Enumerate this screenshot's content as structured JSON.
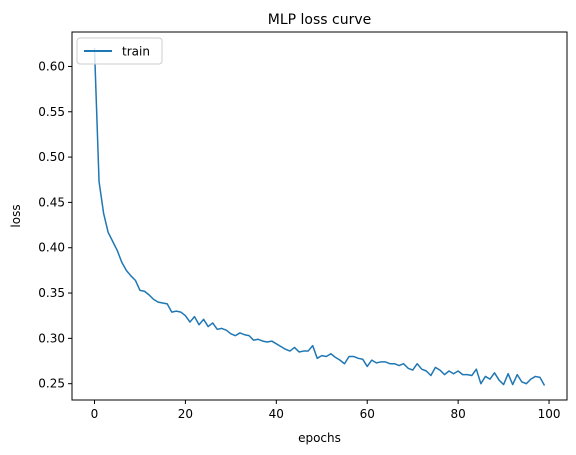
{
  "chart_data": {
    "type": "line",
    "title": "MLP loss curve",
    "xlabel": "epochs",
    "ylabel": "loss",
    "xlim": [
      -4.95,
      103.95
    ],
    "ylim": [
      0.232,
      0.638
    ],
    "x_ticks": [
      0,
      20,
      40,
      60,
      80,
      100
    ],
    "x_tick_labels": [
      "0",
      "20",
      "40",
      "60",
      "80",
      "100"
    ],
    "y_ticks": [
      0.25,
      0.3,
      0.35,
      0.4,
      0.45,
      0.5,
      0.55,
      0.6
    ],
    "y_tick_labels": [
      "0.25",
      "0.30",
      "0.35",
      "0.40",
      "0.45",
      "0.50",
      "0.55",
      "0.60"
    ],
    "grid": false,
    "legend": {
      "position": "upper-left",
      "entries": [
        "train"
      ]
    },
    "series": [
      {
        "name": "train",
        "color": "#1f77b4",
        "x": [
          0,
          1,
          2,
          3,
          4,
          5,
          6,
          7,
          8,
          9,
          10,
          11,
          12,
          13,
          14,
          15,
          16,
          17,
          18,
          19,
          20,
          21,
          22,
          23,
          24,
          25,
          26,
          27,
          28,
          29,
          30,
          31,
          32,
          33,
          34,
          35,
          36,
          37,
          38,
          39,
          40,
          41,
          42,
          43,
          44,
          45,
          46,
          47,
          48,
          49,
          50,
          51,
          52,
          53,
          54,
          55,
          56,
          57,
          58,
          59,
          60,
          61,
          62,
          63,
          64,
          65,
          66,
          67,
          68,
          69,
          70,
          71,
          72,
          73,
          74,
          75,
          76,
          77,
          78,
          79,
          80,
          81,
          82,
          83,
          84,
          85,
          86,
          87,
          88,
          89,
          90,
          91,
          92,
          93,
          94,
          95,
          96,
          97,
          98,
          99
        ],
        "values": [
          0.62,
          0.473,
          0.438,
          0.417,
          0.407,
          0.397,
          0.384,
          0.375,
          0.369,
          0.364,
          0.353,
          0.352,
          0.348,
          0.343,
          0.34,
          0.339,
          0.338,
          0.329,
          0.33,
          0.329,
          0.325,
          0.318,
          0.324,
          0.315,
          0.321,
          0.313,
          0.317,
          0.31,
          0.311,
          0.309,
          0.305,
          0.303,
          0.306,
          0.304,
          0.303,
          0.298,
          0.299,
          0.297,
          0.296,
          0.297,
          0.294,
          0.291,
          0.288,
          0.286,
          0.29,
          0.285,
          0.286,
          0.286,
          0.292,
          0.278,
          0.281,
          0.28,
          0.283,
          0.279,
          0.276,
          0.272,
          0.28,
          0.28,
          0.278,
          0.277,
          0.269,
          0.276,
          0.273,
          0.274,
          0.274,
          0.272,
          0.272,
          0.27,
          0.272,
          0.267,
          0.265,
          0.272,
          0.266,
          0.264,
          0.259,
          0.268,
          0.265,
          0.26,
          0.264,
          0.261,
          0.264,
          0.26,
          0.26,
          0.259,
          0.266,
          0.25,
          0.258,
          0.255,
          0.262,
          0.254,
          0.249,
          0.261,
          0.249,
          0.26,
          0.252,
          0.25,
          0.255,
          0.258,
          0.257,
          0.248
        ]
      }
    ]
  }
}
